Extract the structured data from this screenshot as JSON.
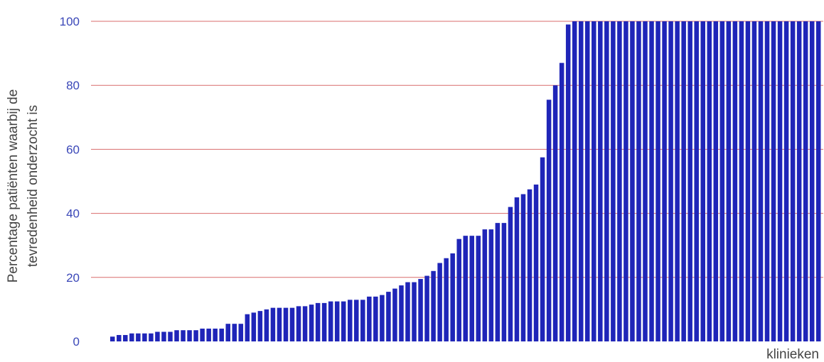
{
  "chart_data": {
    "type": "bar",
    "title": "",
    "xlabel": "klinieken",
    "ylabel_lines": [
      "Percentage patiënten waarbij de",
      "tevredenheid onderzocht is"
    ],
    "ylim": [
      0,
      100
    ],
    "yticks": [
      0,
      20,
      40,
      60,
      80,
      100
    ],
    "grid": true,
    "legend": "none",
    "colors": {
      "bar": "#1f25b8",
      "grid": "#d96b6b",
      "tick_label": "#3a47b8",
      "text": "#444444"
    },
    "values": [
      1.5,
      2,
      2,
      2.5,
      2.5,
      2.5,
      2.5,
      3,
      3,
      3,
      3.5,
      3.5,
      3.5,
      3.5,
      4,
      4,
      4,
      4,
      5.5,
      5.5,
      5.5,
      8.5,
      9,
      9.5,
      10,
      10.5,
      10.5,
      10.5,
      10.5,
      11,
      11,
      11.5,
      12,
      12,
      12.5,
      12.5,
      12.5,
      13,
      13,
      13,
      14,
      14,
      14.5,
      15.5,
      16.5,
      17.5,
      18.5,
      18.5,
      19.5,
      20.5,
      22,
      24.5,
      26,
      27.5,
      32,
      33,
      33,
      33,
      35,
      35,
      37,
      37,
      42,
      45,
      46,
      47.5,
      49,
      57.5,
      75.5,
      80,
      87,
      99,
      100,
      100,
      100,
      100,
      100,
      100,
      100,
      100,
      100,
      100,
      100,
      100,
      100,
      100,
      100,
      100,
      100,
      100,
      100,
      100,
      100,
      100,
      100,
      100,
      100,
      100,
      100,
      100,
      100,
      100,
      100,
      100,
      100,
      100,
      100,
      100,
      100,
      100,
      100
    ]
  }
}
